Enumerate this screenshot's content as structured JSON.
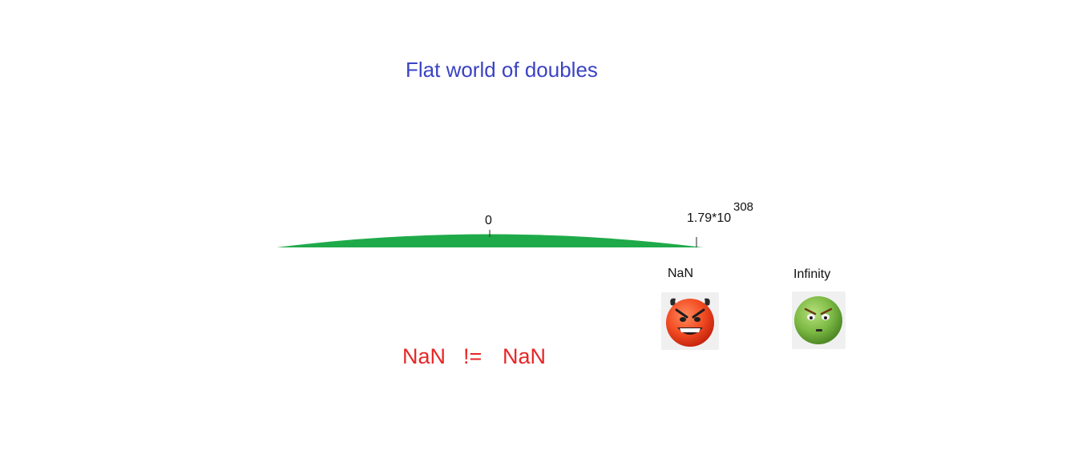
{
  "title": "Flat world of doubles",
  "axis": {
    "zero_label": "0",
    "max_mantissa": "1.79*10",
    "max_exponent": "308"
  },
  "specials": {
    "nan": {
      "label": "NaN",
      "icon": "angry-devil-face-icon",
      "color": "#e8381e"
    },
    "infinity": {
      "label": "Infinity",
      "icon": "grumpy-green-face-icon",
      "color": "#77b33f"
    }
  },
  "inequality": {
    "left": "NaN",
    "operator": "!=",
    "right": "NaN"
  },
  "colors": {
    "title": "#3a43c4",
    "world": "#1faa4a",
    "inequality": "#e82626"
  }
}
